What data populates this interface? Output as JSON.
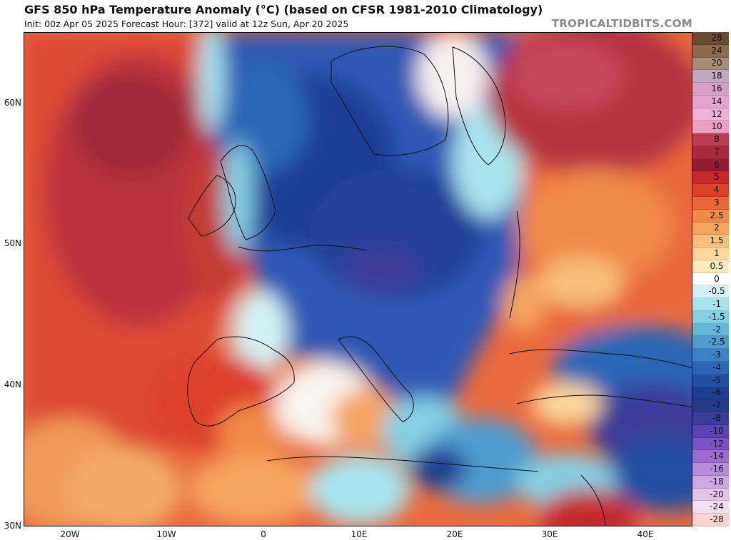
{
  "title": "GFS 850 hPa Temperature Anomaly (°C) (based on CFSR 1981-2010 Climatology)",
  "subtitle": "Init: 00z Apr 05 2025   Forecast Hour: [372]   valid at 12z Sun, Apr 20 2025",
  "brand": "TROPICALTIDBITS.COM",
  "lat_labels": [
    "60N",
    "50N",
    "40N",
    "30N"
  ],
  "lon_labels": [
    "20W",
    "10W",
    "0",
    "10E",
    "20E",
    "30E",
    "40E"
  ],
  "colorbar": {
    "labels": [
      "28",
      "24",
      "20",
      "18",
      "16",
      "14",
      "12",
      "10",
      "8",
      "7",
      "6",
      "5",
      "4",
      "3",
      "2.5",
      "2",
      "1.5",
      "1",
      "0.5",
      "0",
      "-0.5",
      "-1",
      "-1.5",
      "-2",
      "-2.5",
      "-3",
      "-4",
      "-5",
      "-6",
      "-7",
      "-8",
      "-10",
      "-12",
      "-14",
      "-16",
      "-18",
      "-20",
      "-24",
      "-28"
    ],
    "colors": [
      "#6b4b30",
      "#8b6a4e",
      "#a78c7a",
      "#c0a9c0",
      "#d6a0c4",
      "#e3a4cf",
      "#eeb2d8",
      "#ee9fc0",
      "#bb3d52",
      "#a82a3e",
      "#961c30",
      "#c42a2a",
      "#dc3f2a",
      "#e8663a",
      "#f08a48",
      "#f5a45e",
      "#f8bf7c",
      "#fad79a",
      "#fdebbe",
      "#ffffff",
      "#d3f2f4",
      "#a8e4ec",
      "#84cfe2",
      "#66b6d9",
      "#4f9bd0",
      "#3b82c6",
      "#2c66b6",
      "#2150a2",
      "#1b3f8e",
      "#243a88",
      "#3a3c98",
      "#5a44b2",
      "#7a52c4",
      "#9d6ad2",
      "#b88ada",
      "#cfa6e0",
      "#e3c4e8",
      "#f1dff0",
      "#fbd2cc"
    ]
  }
}
